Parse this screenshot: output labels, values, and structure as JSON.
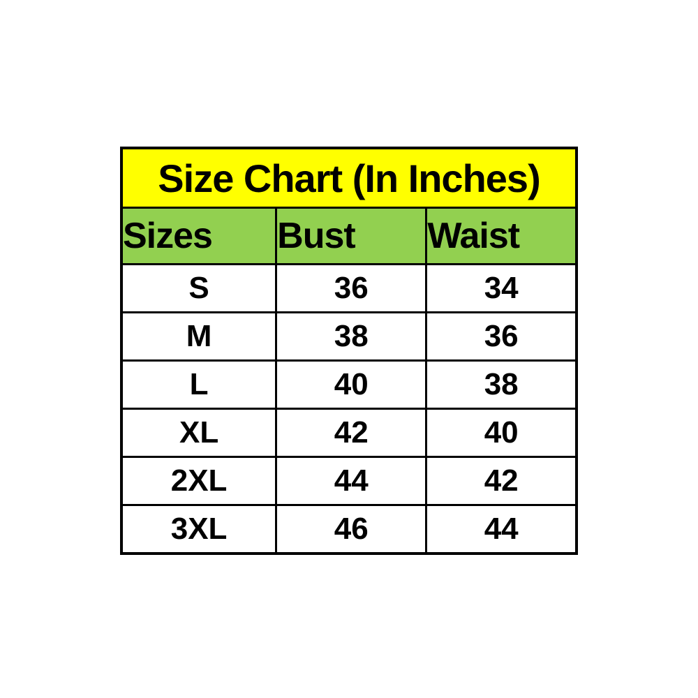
{
  "size_chart": {
    "title": "Size Chart (In Inches)",
    "columns": [
      "Sizes",
      "Bust",
      "Waist"
    ],
    "rows": [
      {
        "size": "S",
        "bust": "36",
        "waist": "34"
      },
      {
        "size": "M",
        "bust": "38",
        "waist": "36"
      },
      {
        "size": "L",
        "bust": "40",
        "waist": "38"
      },
      {
        "size": "XL",
        "bust": "42",
        "waist": "40"
      },
      {
        "size": "2XL",
        "bust": "44",
        "waist": "42"
      },
      {
        "size": "3XL",
        "bust": "46",
        "waist": "44"
      }
    ],
    "colors": {
      "title_background": "#ffff00",
      "header_background": "#92d050",
      "cell_background": "#ffffff",
      "border": "#000000",
      "text": "#000000",
      "page_background": "#ffffff"
    }
  },
  "chart_data": {
    "type": "table",
    "title": "Size Chart (In Inches)",
    "columns": [
      "Sizes",
      "Bust",
      "Waist"
    ],
    "rows": [
      [
        "S",
        36,
        34
      ],
      [
        "M",
        38,
        36
      ],
      [
        "L",
        40,
        38
      ],
      [
        "XL",
        42,
        40
      ],
      [
        "2XL",
        44,
        42
      ],
      [
        "3XL",
        46,
        44
      ]
    ],
    "units": "inches",
    "layout": "title band (yellow), header row (green), 6 data rows (white), black grid borders"
  }
}
